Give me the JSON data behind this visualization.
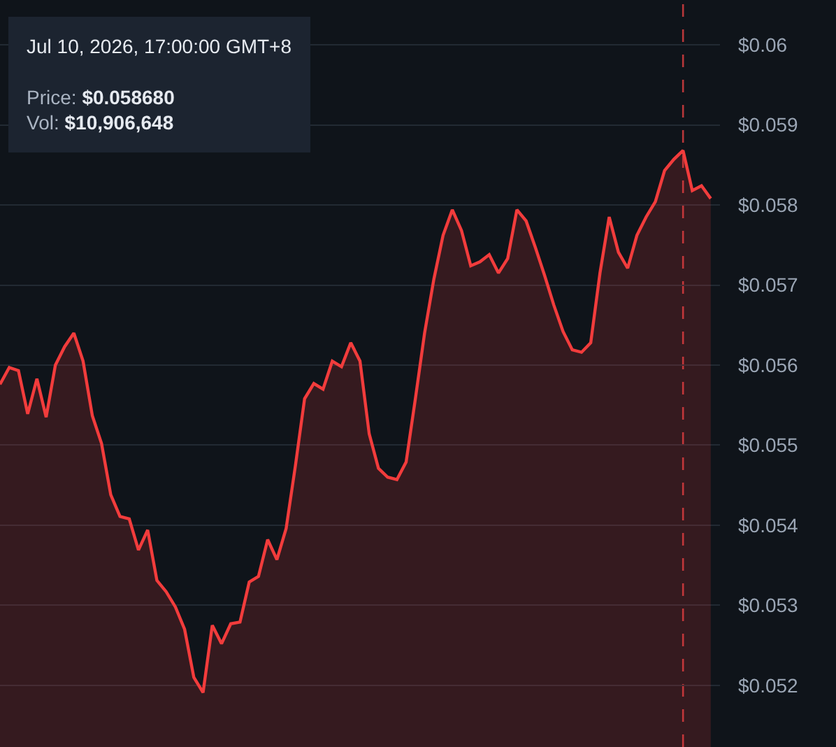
{
  "chart_data": {
    "type": "area",
    "categories": [
      null,
      null,
      null,
      null,
      null,
      null,
      null,
      null,
      null,
      null,
      null,
      null,
      null,
      null,
      null,
      null,
      null,
      null,
      null,
      null,
      null,
      null,
      null,
      null,
      null,
      null,
      null,
      null,
      null,
      null,
      null,
      null,
      null,
      null,
      null,
      null,
      null,
      null,
      null,
      null,
      null,
      null,
      null,
      null,
      null,
      null,
      null,
      null,
      null,
      null,
      null,
      null,
      null,
      null,
      null,
      null,
      null,
      null,
      null,
      null,
      null,
      null,
      null,
      null,
      null,
      null,
      null,
      null,
      null,
      null,
      null,
      null,
      null,
      null,
      null,
      null,
      null,
      null
    ],
    "series": [
      {
        "color": "#f23c3c",
        "values": [
          0.05576,
          0.05597,
          0.05593,
          0.05539,
          0.05583,
          0.05535,
          0.056,
          0.05623,
          0.0564,
          0.05605,
          0.05537,
          0.05502,
          0.05438,
          0.05411,
          0.05408,
          0.05369,
          0.05394,
          0.05331,
          0.05317,
          0.05298,
          0.0527,
          0.0521,
          0.05191,
          0.05275,
          0.05252,
          0.05277,
          0.05279,
          0.05329,
          0.05336,
          0.05382,
          0.05357,
          0.05396,
          0.05474,
          0.05558,
          0.05577,
          0.0557,
          0.05605,
          0.05598,
          0.05628,
          0.05605,
          0.05514,
          0.05471,
          0.0546,
          0.05457,
          0.05479,
          0.05558,
          0.0564,
          0.05707,
          0.05762,
          0.05794,
          0.05768,
          0.05724,
          0.05729,
          0.05738,
          0.05715,
          0.05733,
          0.05794,
          0.0578,
          0.05747,
          0.05712,
          0.05675,
          0.05642,
          0.05619,
          0.05616,
          0.05628,
          0.05715,
          0.05785,
          0.05741,
          0.05721,
          0.05762,
          0.05785,
          0.05804,
          0.05843,
          0.05857,
          0.05868,
          0.05818,
          0.05824,
          0.05808
        ]
      }
    ],
    "ylim": [
      0.05123,
      0.06056
    ],
    "yticks": [
      {
        "value": 0.052,
        "label": "$0.052"
      },
      {
        "value": 0.053,
        "label": "$0.053"
      },
      {
        "value": 0.054,
        "label": "$0.054"
      },
      {
        "value": 0.055,
        "label": "$0.055"
      },
      {
        "value": 0.056,
        "label": "$0.056"
      },
      {
        "value": 0.057,
        "label": "$0.057"
      },
      {
        "value": 0.058,
        "label": "$0.058"
      },
      {
        "value": 0.059,
        "label": "$0.059"
      },
      {
        "value": 0.06,
        "label": "$0.06"
      }
    ],
    "grid": "y",
    "tick_labels": "y",
    "annotations": [
      "Jul 10, 2026, 17:00:00 GMT+8",
      "Price: $0.058680",
      "Vol: $10,906,648"
    ]
  }
}
